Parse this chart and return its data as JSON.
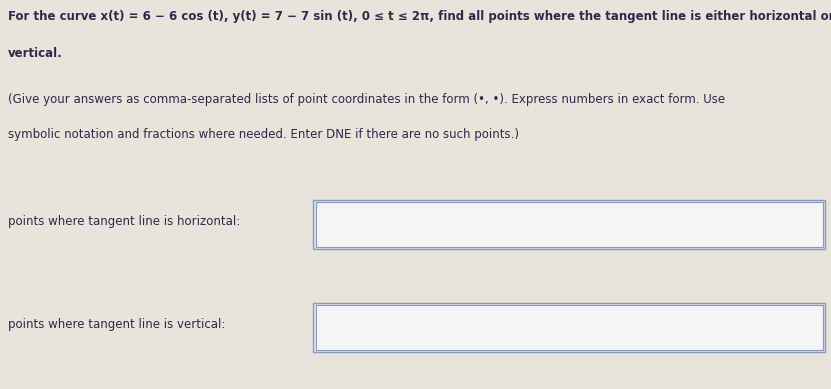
{
  "background_color": "#e8e4dc",
  "title_line1": "For the curve x(t) = 6 − 6 cos (t), y(t) = 7 − 7 sin (t), 0 ≤ t ≤ 2π, find all points where the tangent line is either horizontal or",
  "title_line2": "vertical.",
  "instruction_line1": "(Give your answers as comma-separated lists of point coordinates in the form (•, •). Express numbers in exact form. Use",
  "instruction_line2": "symbolic notation and fractions where needed. Enter DNE if there are no such points.)",
  "label_horizontal": "points where tangent line is horizontal:",
  "label_vertical": "points where tangent line is vertical:",
  "box_facecolor": "#dce4f0",
  "box_edgecolor": "#7a8fad",
  "text_color": "#2a2a4a",
  "title_fontsize": 8.5,
  "instr_fontsize": 8.5,
  "label_fontsize": 8.5
}
